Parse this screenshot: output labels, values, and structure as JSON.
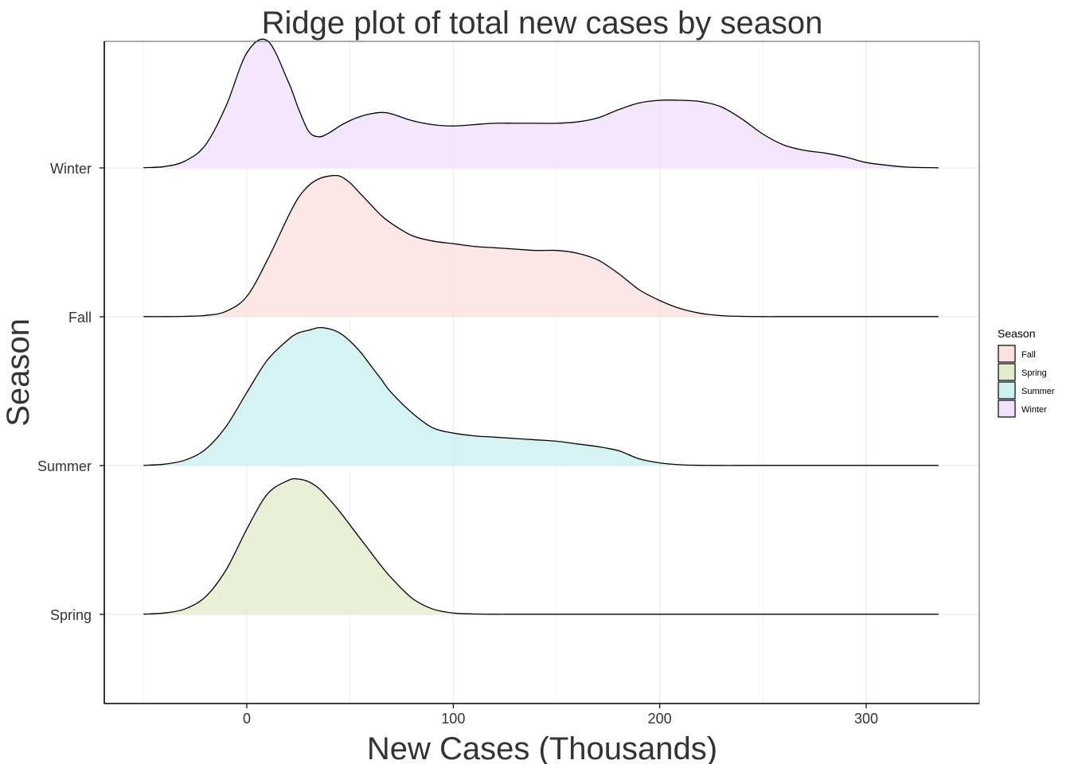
{
  "chart_data": {
    "type": "area",
    "subtype": "ridgeline",
    "title": "Ridge plot of total new cases by season",
    "xlabel": "New Cases (Thousands)",
    "ylabel": "Season",
    "xlim": [
      -50,
      335
    ],
    "x_ticks": [
      0,
      100,
      200,
      300
    ],
    "grid": true,
    "legend": {
      "title": "Season",
      "position": "right"
    },
    "categories": [
      "Spring",
      "Summer",
      "Fall",
      "Winter"
    ],
    "x": [
      -50,
      -40,
      -30,
      -20,
      -10,
      0,
      10,
      20,
      25,
      30,
      35,
      40,
      45,
      50,
      55,
      60,
      65,
      70,
      80,
      90,
      100,
      110,
      120,
      130,
      140,
      150,
      160,
      170,
      180,
      190,
      200,
      210,
      220,
      230,
      240,
      250,
      260,
      270,
      280,
      290,
      300,
      310,
      320,
      335
    ],
    "series": [
      {
        "name": "Spring",
        "color": "#e3edcd",
        "values": [
          0.002,
          0.01,
          0.04,
          0.13,
          0.33,
          0.63,
          0.89,
          0.99,
          1.0,
          0.98,
          0.93,
          0.85,
          0.76,
          0.66,
          0.56,
          0.46,
          0.36,
          0.27,
          0.12,
          0.04,
          0.01,
          0.003,
          0.001,
          0.001,
          0.001,
          0.001,
          0.001,
          0.001,
          0.001,
          0.001,
          0.001,
          0.001,
          0.001,
          0.001,
          0.001,
          0.001,
          0.001,
          0.001,
          0.001,
          0.001,
          0.001,
          0.001,
          0.001,
          0.001
        ]
      },
      {
        "name": "Summer",
        "color": "#cdf0f1",
        "values": [
          0.002,
          0.01,
          0.04,
          0.12,
          0.29,
          0.54,
          0.78,
          0.93,
          0.98,
          1.0,
          1.02,
          1.01,
          0.98,
          0.92,
          0.84,
          0.74,
          0.64,
          0.54,
          0.39,
          0.28,
          0.24,
          0.22,
          0.21,
          0.2,
          0.19,
          0.18,
          0.16,
          0.14,
          0.11,
          0.05,
          0.02,
          0.006,
          0.002,
          0.001,
          0.001,
          0.001,
          0.001,
          0.001,
          0.001,
          0.001,
          0.001,
          0.001,
          0.001,
          0.001
        ]
      },
      {
        "name": "Fall",
        "color": "#fde0e0",
        "values": [
          0.001,
          0.001,
          0.003,
          0.01,
          0.04,
          0.15,
          0.42,
          0.74,
          0.88,
          0.97,
          1.02,
          1.04,
          1.04,
          0.99,
          0.91,
          0.83,
          0.75,
          0.69,
          0.6,
          0.56,
          0.54,
          0.52,
          0.51,
          0.5,
          0.49,
          0.49,
          0.47,
          0.42,
          0.32,
          0.2,
          0.12,
          0.06,
          0.025,
          0.008,
          0.003,
          0.001,
          0.001,
          0.001,
          0.001,
          0.001,
          0.001,
          0.001,
          0.001,
          0.001
        ]
      },
      {
        "name": "Winter",
        "color": "#f1e1fd",
        "values": [
          0.002,
          0.01,
          0.05,
          0.17,
          0.46,
          0.85,
          0.94,
          0.64,
          0.44,
          0.27,
          0.23,
          0.26,
          0.31,
          0.35,
          0.38,
          0.4,
          0.41,
          0.4,
          0.35,
          0.32,
          0.31,
          0.32,
          0.33,
          0.33,
          0.33,
          0.33,
          0.34,
          0.37,
          0.43,
          0.48,
          0.5,
          0.5,
          0.49,
          0.45,
          0.36,
          0.25,
          0.17,
          0.13,
          0.11,
          0.08,
          0.04,
          0.02,
          0.006,
          0.001
        ]
      }
    ]
  }
}
